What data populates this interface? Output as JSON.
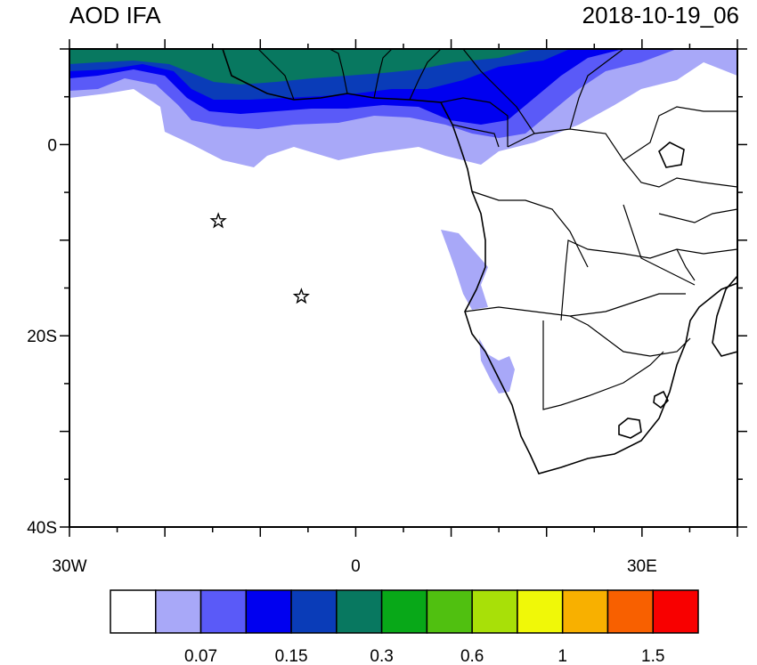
{
  "header": {
    "title": "AOD IFA",
    "timestamp": "2018-10-19_06"
  },
  "map": {
    "lon_range": [
      -30,
      40
    ],
    "lat_range": [
      -40,
      10
    ],
    "x_tick_labels": [
      {
        "lon": -30,
        "label": "30W"
      },
      {
        "lon": 0,
        "label": "0"
      },
      {
        "lon": 30,
        "label": "30E"
      }
    ],
    "y_tick_labels": [
      {
        "lat": 0,
        "label": "0"
      },
      {
        "lat": -20,
        "label": "20S"
      },
      {
        "lat": -40,
        "label": "40S"
      }
    ],
    "markers": [
      {
        "name": "star-marker",
        "lon": -14.4,
        "lat": -8.0
      },
      {
        "name": "star-marker",
        "lon": -5.7,
        "lat": -15.9
      }
    ]
  },
  "colorbar": {
    "colors": [
      "#ffffff",
      "#a8a8f8",
      "#5a5af8",
      "#0000f0",
      "#0a3cb8",
      "#087860",
      "#08a818",
      "#50c010",
      "#a8e008",
      "#f0f808",
      "#f8b000",
      "#f86000",
      "#f80000"
    ],
    "labels": [
      {
        "index": 1,
        "text": "0.07"
      },
      {
        "index": 3,
        "text": "0.15"
      },
      {
        "index": 5,
        "text": "0.3"
      },
      {
        "index": 7,
        "text": "0.6"
      },
      {
        "index": 9,
        "text": "1"
      },
      {
        "index": 11,
        "text": "1.5"
      }
    ]
  }
}
